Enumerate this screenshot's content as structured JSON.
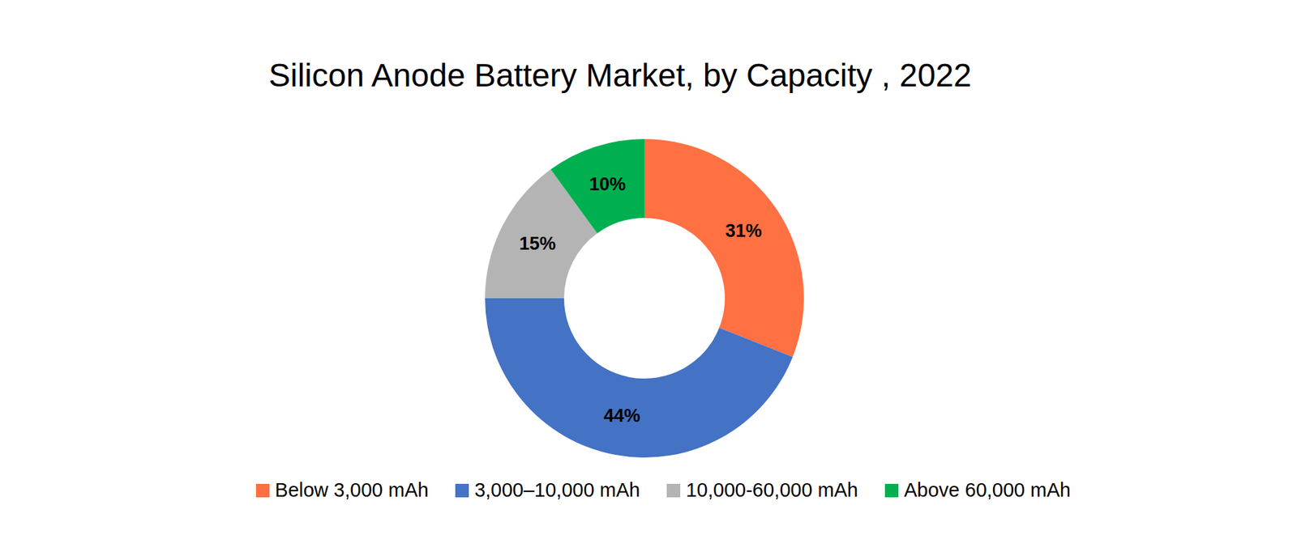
{
  "chart_data": {
    "type": "pie",
    "title": "Silicon Anode Battery Market, by Capacity , 2022",
    "categories": [
      "Below 3,000 mAh",
      "3,000–10,000 mAh",
      "10,000-60,000 mAh",
      "Above 60,000 mAh"
    ],
    "values": [
      31,
      44,
      15,
      10
    ],
    "value_labels": [
      "31%",
      "44%",
      "15%",
      "10%"
    ],
    "colors": [
      "#FF7043",
      "#4472C4",
      "#B4B4B4",
      "#00B050"
    ],
    "data_labels": true,
    "legend": "bottom"
  }
}
